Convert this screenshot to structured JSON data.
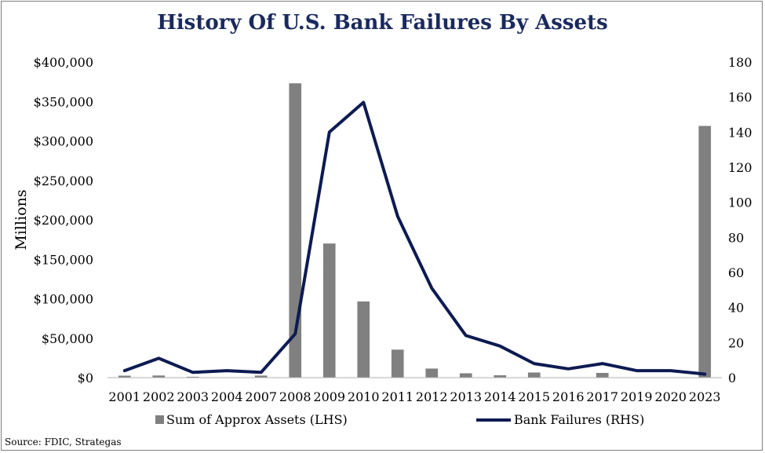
{
  "chart_data": {
    "type": "bar",
    "title": "History Of U.S. Bank Failures By Assets",
    "ylabel": "Millions",
    "y2label": "",
    "categories": [
      "2001",
      "2002",
      "2003",
      "2004",
      "2007",
      "2008",
      "2009",
      "2010",
      "2011",
      "2012",
      "2013",
      "2014",
      "2015",
      "2016",
      "2017",
      "2019",
      "2020",
      "2023"
    ],
    "series": [
      {
        "name": "Sum of Approx Assets (LHS)",
        "type": "bar",
        "axis": "left",
        "color": "#808080",
        "values": [
          2500,
          2700,
          1100,
          100,
          2600,
          373000,
          170000,
          96500,
          35500,
          11500,
          5500,
          3000,
          6500,
          300,
          6000,
          200,
          500,
          319000
        ]
      },
      {
        "name": "Bank Failures (RHS)",
        "type": "line",
        "axis": "right",
        "color": "#0d1b52",
        "values": [
          4,
          11,
          3,
          4,
          3,
          25,
          140,
          157,
          92,
          51,
          24,
          18,
          8,
          5,
          8,
          4,
          4,
          2
        ]
      }
    ],
    "ylim": [
      0,
      400000
    ],
    "y_ticks": [
      "$0",
      "$50,000",
      "$100,000",
      "$150,000",
      "$200,000",
      "$250,000",
      "$300,000",
      "$350,000",
      "$400,000"
    ],
    "y2lim": [
      0,
      180
    ],
    "y2_ticks": [
      "0",
      "20",
      "40",
      "60",
      "80",
      "100",
      "120",
      "140",
      "160",
      "180"
    ],
    "grid": false,
    "legend": "bottom"
  },
  "footer": {
    "source": "Source: FDIC, Strategas"
  }
}
